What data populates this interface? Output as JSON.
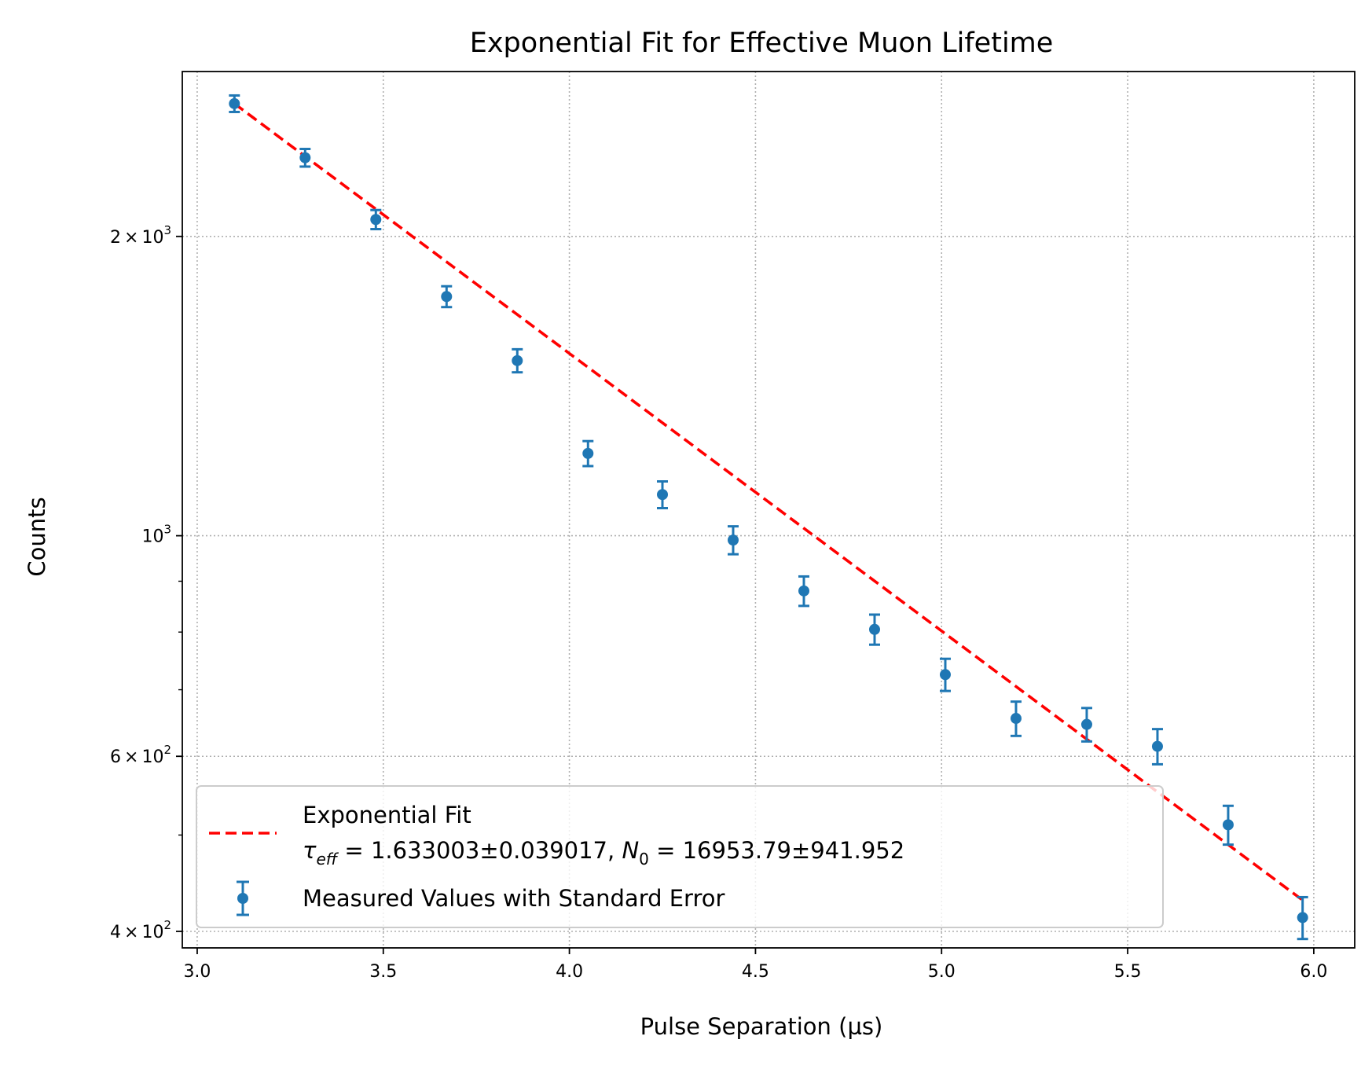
{
  "chart_data": {
    "type": "scatter",
    "title": "Exponential Fit for Effective Muon Lifetime",
    "xlabel": "Pulse Separation (µs)",
    "ylabel": "Counts",
    "xlim": [
      2.96,
      6.11
    ],
    "ylim": [
      385,
      2930
    ],
    "yscale": "log",
    "grid": true,
    "legend_position": "lower-left",
    "x_ticks": [
      {
        "value": 3.0,
        "label": "3.0"
      },
      {
        "value": 3.5,
        "label": "3.5"
      },
      {
        "value": 4.0,
        "label": "4.0"
      },
      {
        "value": 4.5,
        "label": "4.5"
      },
      {
        "value": 5.0,
        "label": "5.0"
      },
      {
        "value": 5.5,
        "label": "5.5"
      },
      {
        "value": 6.0,
        "label": "6.0"
      }
    ],
    "y_ticks": [
      {
        "value": 400,
        "base": "4",
        "times": "×",
        "power": "10",
        "exp": "2"
      },
      {
        "value": 600,
        "base": "6",
        "times": "×",
        "power": "10",
        "exp": "2"
      },
      {
        "value": 1000,
        "base": "",
        "times": "",
        "power": "10",
        "exp": "3"
      },
      {
        "value": 2000,
        "base": "2",
        "times": "×",
        "power": "10",
        "exp": "3"
      }
    ],
    "y_minor_ticks": [
      500,
      700,
      800,
      900
    ],
    "series": [
      {
        "name": "Measured Values with Standard Error",
        "kind": "errorbar",
        "color": "#1f77b4",
        "x": [
          3.1,
          3.29,
          3.48,
          3.67,
          3.86,
          4.05,
          4.25,
          4.44,
          4.63,
          4.82,
          5.01,
          5.2,
          5.39,
          5.58,
          5.77,
          5.97
        ],
        "y": [
          2720,
          2400,
          2080,
          1740,
          1500,
          1210,
          1100,
          990,
          880,
          805,
          725,
          655,
          646,
          614,
          512,
          413
        ],
        "yerr": [
          52,
          49,
          46,
          42,
          40,
          35,
          34,
          32,
          30,
          28,
          27,
          26,
          25,
          25,
          23,
          20
        ]
      },
      {
        "name": "Exponential Fit",
        "kind": "line",
        "color": "#ff0000",
        "linestyle": "dashed",
        "x": [
          3.1,
          5.97
        ],
        "y": [
          2720,
          430
        ]
      }
    ],
    "legend": {
      "fit_label": "Exponential Fit",
      "tau_symbol": "τ",
      "tau_sub": "eff",
      "tau_text": " = 1.633003±0.039017, ",
      "n_symbol": "N",
      "n_sub": "0",
      "n_text": " = 16953.79±941.952",
      "data_label": "Measured Values with Standard Error"
    }
  }
}
